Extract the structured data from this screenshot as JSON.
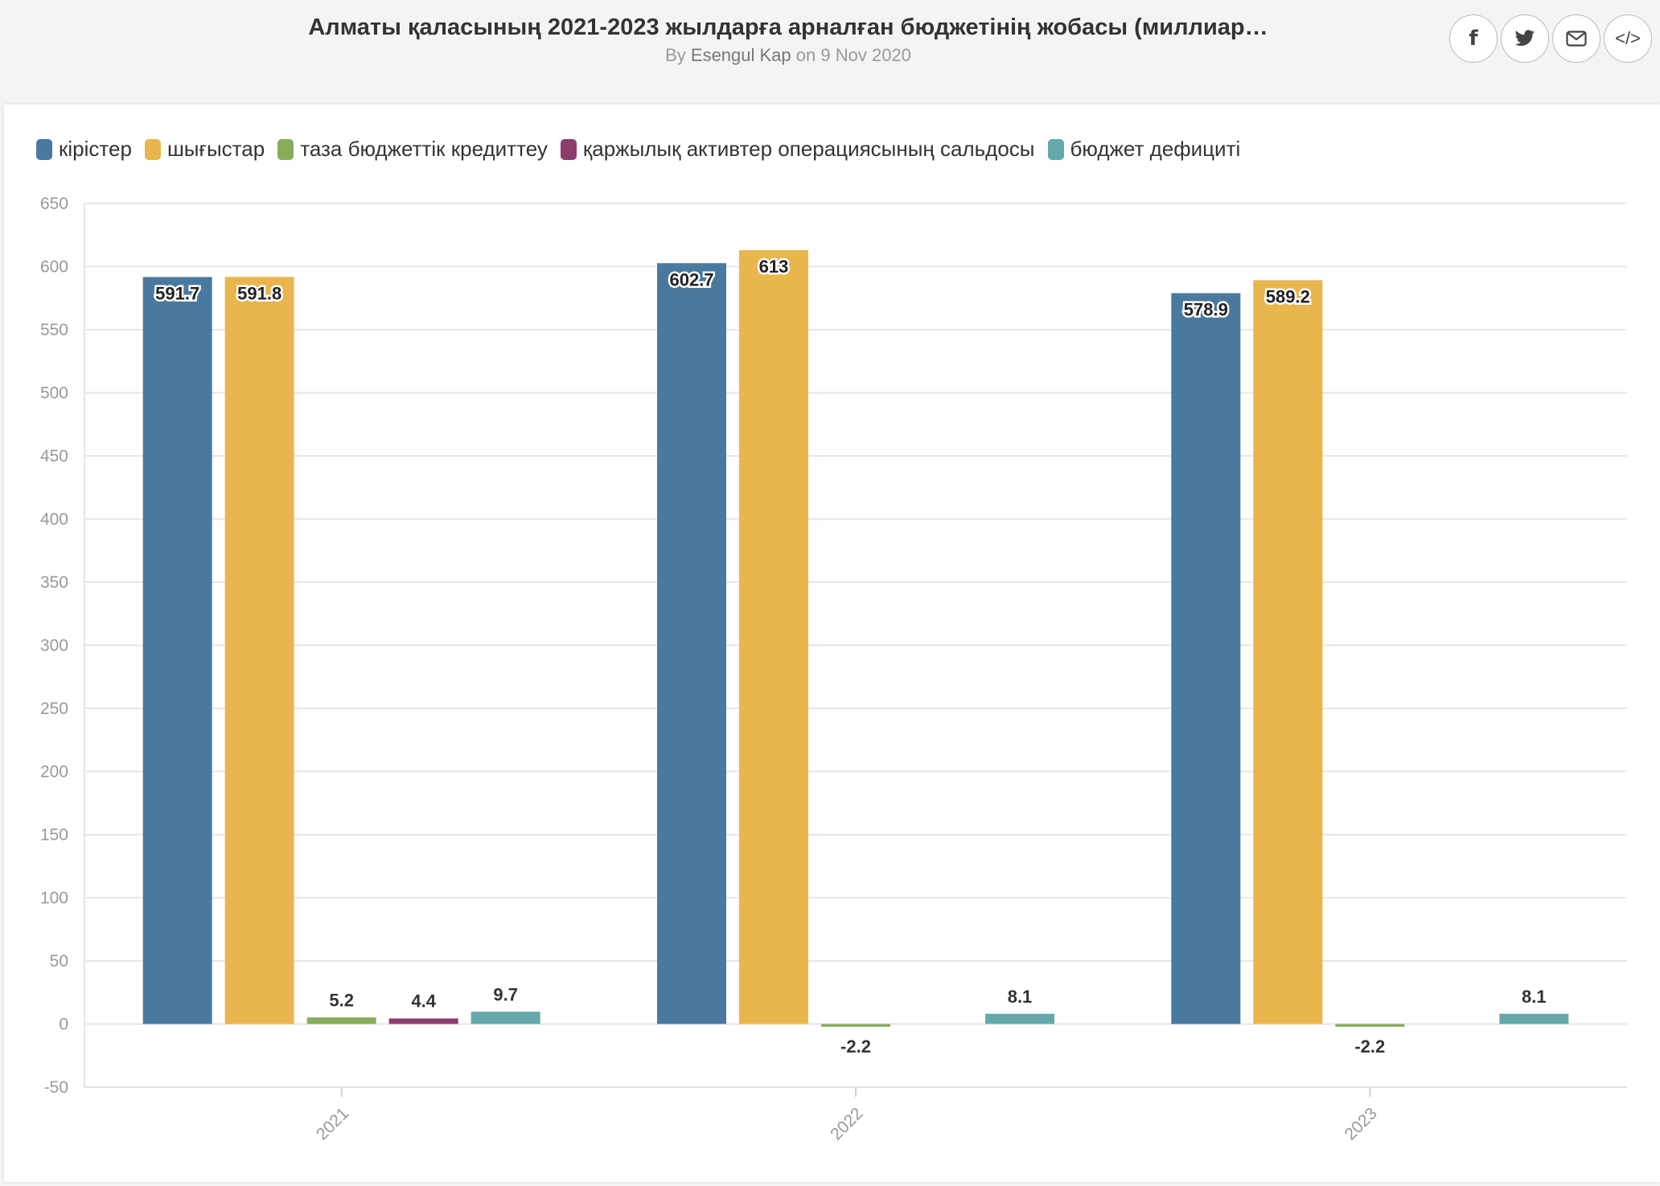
{
  "header": {
    "title": "Алматы қаласының 2021-2023 жылдарға арналған бюджетінің жобасы (миллиар…",
    "by_prefix": "By",
    "author": "Esengul Kap",
    "date_prefix": "on",
    "date": "9 Nov 2020"
  },
  "share": [
    {
      "icon": "facebook-icon",
      "glyph": "f"
    },
    {
      "icon": "twitter-icon",
      "glyph": "🐦"
    },
    {
      "icon": "email-icon",
      "glyph": "✉"
    },
    {
      "icon": "embed-icon",
      "glyph": "</>"
    }
  ],
  "chart_data": {
    "type": "bar",
    "categories": [
      "2021",
      "2022",
      "2023"
    ],
    "series": [
      {
        "name": "кірістер",
        "color": "#4a79a0",
        "values": [
          591.7,
          602.7,
          578.9
        ],
        "labels": [
          "591.7",
          "602.7",
          "578.9"
        ]
      },
      {
        "name": "шығыстар",
        "color": "#e8b64c",
        "values": [
          591.8,
          613,
          589.2
        ],
        "labels": [
          "591.8",
          "613",
          "589.2"
        ]
      },
      {
        "name": "таза бюджеттік кредиттеу",
        "color": "#86ad5c",
        "values": [
          5.2,
          -2.2,
          -2.2
        ],
        "labels": [
          "5.2",
          "-2.2",
          "-2.2"
        ]
      },
      {
        "name": "қаржылық активтер операциясының сальдосы",
        "color": "#8c3d6e",
        "values": [
          4.4,
          null,
          null
        ],
        "labels": [
          "4.4",
          "",
          ""
        ]
      },
      {
        "name": "бюджет дефициті",
        "color": "#64a9ab",
        "values": [
          9.7,
          8.1,
          8.1
        ],
        "labels": [
          "9.7",
          "8.1",
          "8.1"
        ]
      }
    ],
    "ylim": [
      -50,
      650
    ],
    "yticks": [
      -50,
      0,
      50,
      100,
      150,
      200,
      250,
      300,
      350,
      400,
      450,
      500,
      550,
      600,
      650
    ],
    "legend": "top-left",
    "grid": true
  }
}
